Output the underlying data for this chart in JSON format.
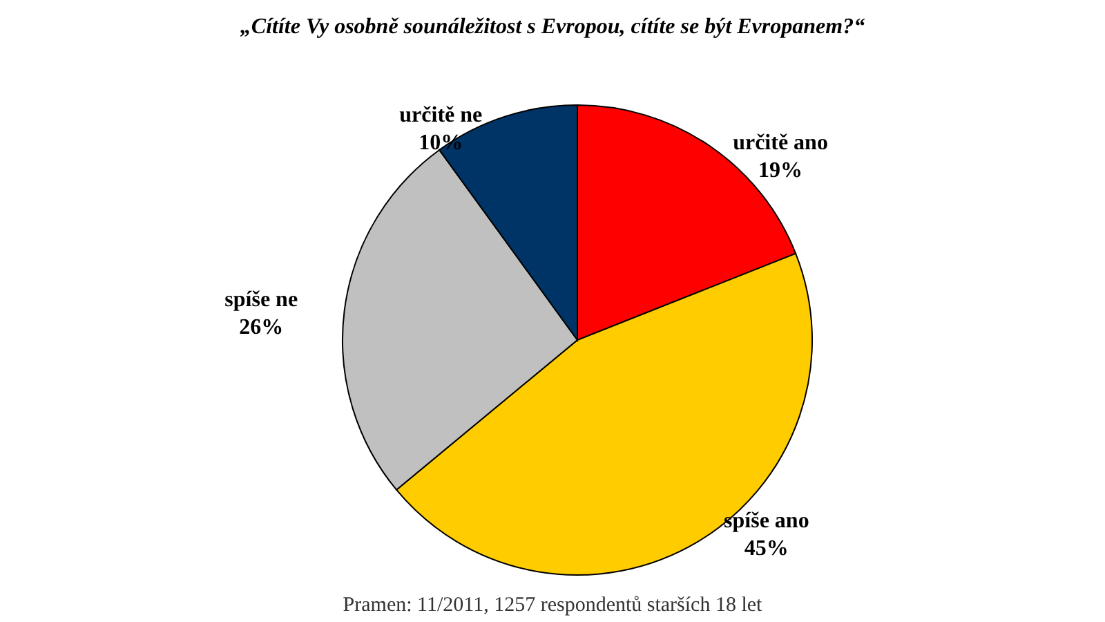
{
  "chart_data": {
    "type": "pie",
    "title": "„Cítíte Vy osobně sounáležitost s Evropou, cítíte se být Evropanem?“",
    "categories": [
      "určitě ano",
      "spíše ano",
      "spíše ne",
      "určitě ne"
    ],
    "values": [
      19,
      45,
      26,
      10
    ],
    "value_labels": [
      "19%",
      "45%",
      "26%",
      "10%"
    ],
    "colors": [
      "#ff0000",
      "#ffcc00",
      "#c0c0c0",
      "#003366"
    ],
    "annotations": [
      "Pramen: 11/2011, 1257 respondentů starších 18 let"
    ]
  }
}
